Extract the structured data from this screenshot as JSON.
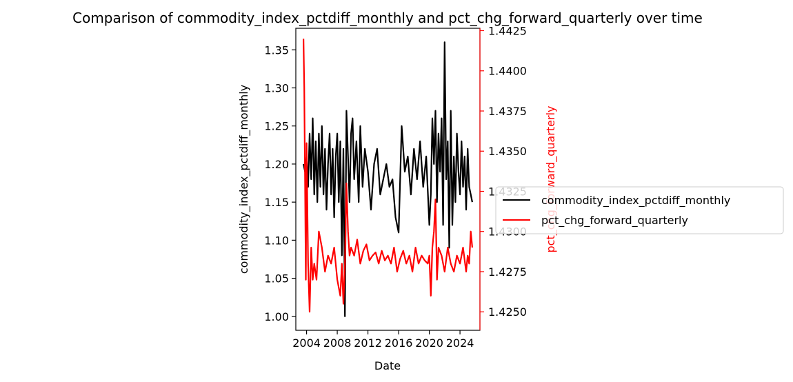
{
  "chart_data": {
    "type": "line",
    "title": "Comparison of commodity_index_pctdiff_monthly and pct_chg_forward_quarterly over time",
    "xlabel": "Date",
    "ylabel_left": "commodity_index_pctdiff_monthly",
    "ylabel_right": "pct_chg_forward_quarterly",
    "xlim": [
      2002.6,
      2026.6
    ],
    "ylim_left": [
      0.9817,
      1.3783
    ],
    "ylim_right": [
      1.42385,
      1.44265
    ],
    "x_ticks": [
      {
        "value": 2004,
        "label": "2004"
      },
      {
        "value": 2008,
        "label": "2008"
      },
      {
        "value": 2012,
        "label": "2012"
      },
      {
        "value": 2016,
        "label": "2016"
      },
      {
        "value": 2020,
        "label": "2020"
      },
      {
        "value": 2024,
        "label": "2024"
      }
    ],
    "y_ticks_left": [
      {
        "value": 1.0,
        "label": "1.00"
      },
      {
        "value": 1.05,
        "label": "1.05"
      },
      {
        "value": 1.1,
        "label": "1.10"
      },
      {
        "value": 1.15,
        "label": "1.15"
      },
      {
        "value": 1.2,
        "label": "1.20"
      },
      {
        "value": 1.25,
        "label": "1.25"
      },
      {
        "value": 1.3,
        "label": "1.30"
      },
      {
        "value": 1.35,
        "label": "1.35"
      }
    ],
    "y_ticks_right": [
      {
        "value": 1.425,
        "label": "1.4250"
      },
      {
        "value": 1.4275,
        "label": "1.4275"
      },
      {
        "value": 1.43,
        "label": "1.4300"
      },
      {
        "value": 1.4325,
        "label": "1.4325"
      },
      {
        "value": 1.435,
        "label": "1.4350"
      },
      {
        "value": 1.4375,
        "label": "1.4375"
      },
      {
        "value": 1.44,
        "label": "1.4400"
      },
      {
        "value": 1.4425,
        "label": "1.4425"
      }
    ],
    "grid": false,
    "legend_position": "right, outside",
    "series": [
      {
        "name": "commodity_index_pctdiff_monthly",
        "axis": "left",
        "color": "#000000",
        "x": [
          2003.6,
          2003.8,
          2004.0,
          2004.2,
          2004.4,
          2004.6,
          2004.8,
          2005.0,
          2005.2,
          2005.4,
          2005.6,
          2005.8,
          2006.0,
          2006.2,
          2006.4,
          2006.6,
          2006.8,
          2007.0,
          2007.2,
          2007.4,
          2007.6,
          2007.8,
          2008.0,
          2008.2,
          2008.4,
          2008.6,
          2008.8,
          2009.0,
          2009.2,
          2009.4,
          2009.6,
          2009.8,
          2010.0,
          2010.2,
          2010.5,
          2010.8,
          2011.0,
          2011.3,
          2011.6,
          2012.0,
          2012.4,
          2012.8,
          2013.2,
          2013.6,
          2014.0,
          2014.4,
          2014.8,
          2015.2,
          2015.6,
          2016.0,
          2016.4,
          2016.8,
          2017.2,
          2017.6,
          2018.0,
          2018.4,
          2018.8,
          2019.2,
          2019.6,
          2020.0,
          2020.2,
          2020.4,
          2020.6,
          2020.8,
          2021.0,
          2021.2,
          2021.4,
          2021.6,
          2021.8,
          2022.0,
          2022.2,
          2022.4,
          2022.6,
          2022.8,
          2023.0,
          2023.2,
          2023.4,
          2023.6,
          2023.8,
          2024.0,
          2024.2,
          2024.4,
          2024.6,
          2024.8,
          2025.0,
          2025.2,
          2025.4,
          2025.6
        ],
        "y": [
          1.2,
          1.19,
          1.21,
          1.17,
          1.24,
          1.18,
          1.26,
          1.16,
          1.23,
          1.15,
          1.24,
          1.17,
          1.25,
          1.16,
          1.22,
          1.14,
          1.2,
          1.24,
          1.16,
          1.22,
          1.13,
          1.21,
          1.24,
          1.15,
          1.23,
          1.08,
          1.22,
          1.0,
          1.27,
          1.21,
          1.15,
          1.24,
          1.26,
          1.18,
          1.23,
          1.15,
          1.25,
          1.17,
          1.22,
          1.19,
          1.14,
          1.2,
          1.22,
          1.16,
          1.18,
          1.2,
          1.17,
          1.18,
          1.13,
          1.11,
          1.25,
          1.19,
          1.21,
          1.16,
          1.22,
          1.18,
          1.23,
          1.17,
          1.21,
          1.12,
          1.16,
          1.26,
          1.2,
          1.27,
          1.15,
          1.24,
          1.19,
          1.26,
          1.12,
          1.36,
          1.18,
          1.23,
          1.09,
          1.27,
          1.12,
          1.21,
          1.15,
          1.24,
          1.19,
          1.16,
          1.23,
          1.17,
          1.21,
          1.14,
          1.22,
          1.17,
          1.16,
          1.15
        ]
      },
      {
        "name": "pct_chg_forward_quarterly",
        "axis": "right",
        "color": "#ff0000",
        "x": [
          2003.6,
          2003.7,
          2003.8,
          2003.9,
          2004.0,
          2004.2,
          2004.4,
          2004.6,
          2004.8,
          2005.0,
          2005.3,
          2005.6,
          2006.0,
          2006.4,
          2006.8,
          2007.2,
          2007.6,
          2008.0,
          2008.4,
          2008.6,
          2008.8,
          2009.0,
          2009.2,
          2009.4,
          2009.6,
          2009.8,
          2010.2,
          2010.6,
          2011.0,
          2011.4,
          2011.8,
          2012.2,
          2012.6,
          2013.0,
          2013.4,
          2013.8,
          2014.2,
          2014.6,
          2015.0,
          2015.4,
          2015.8,
          2016.2,
          2016.6,
          2017.0,
          2017.4,
          2017.8,
          2018.2,
          2018.6,
          2019.0,
          2019.4,
          2019.8,
          2020.0,
          2020.2,
          2020.4,
          2020.6,
          2020.8,
          2021.0,
          2021.2,
          2021.6,
          2022.0,
          2022.4,
          2022.8,
          2023.2,
          2023.6,
          2024.0,
          2024.4,
          2024.8,
          2025.0,
          2025.2,
          2025.4,
          2025.6
        ],
        "y": [
          1.442,
          1.439,
          1.433,
          1.427,
          1.4355,
          1.428,
          1.425,
          1.429,
          1.427,
          1.428,
          1.427,
          1.43,
          1.429,
          1.4275,
          1.4285,
          1.428,
          1.429,
          1.427,
          1.426,
          1.428,
          1.4255,
          1.428,
          1.433,
          1.43,
          1.4285,
          1.429,
          1.4285,
          1.4295,
          1.428,
          1.4288,
          1.4292,
          1.4282,
          1.4285,
          1.4287,
          1.428,
          1.4288,
          1.4282,
          1.4285,
          1.428,
          1.429,
          1.4275,
          1.4283,
          1.4288,
          1.428,
          1.4285,
          1.4275,
          1.429,
          1.428,
          1.4285,
          1.4282,
          1.428,
          1.4285,
          1.426,
          1.429,
          1.43,
          1.432,
          1.427,
          1.429,
          1.4285,
          1.4275,
          1.429,
          1.428,
          1.4275,
          1.4285,
          1.428,
          1.429,
          1.4275,
          1.4285,
          1.428,
          1.43,
          1.429
        ]
      }
    ]
  }
}
